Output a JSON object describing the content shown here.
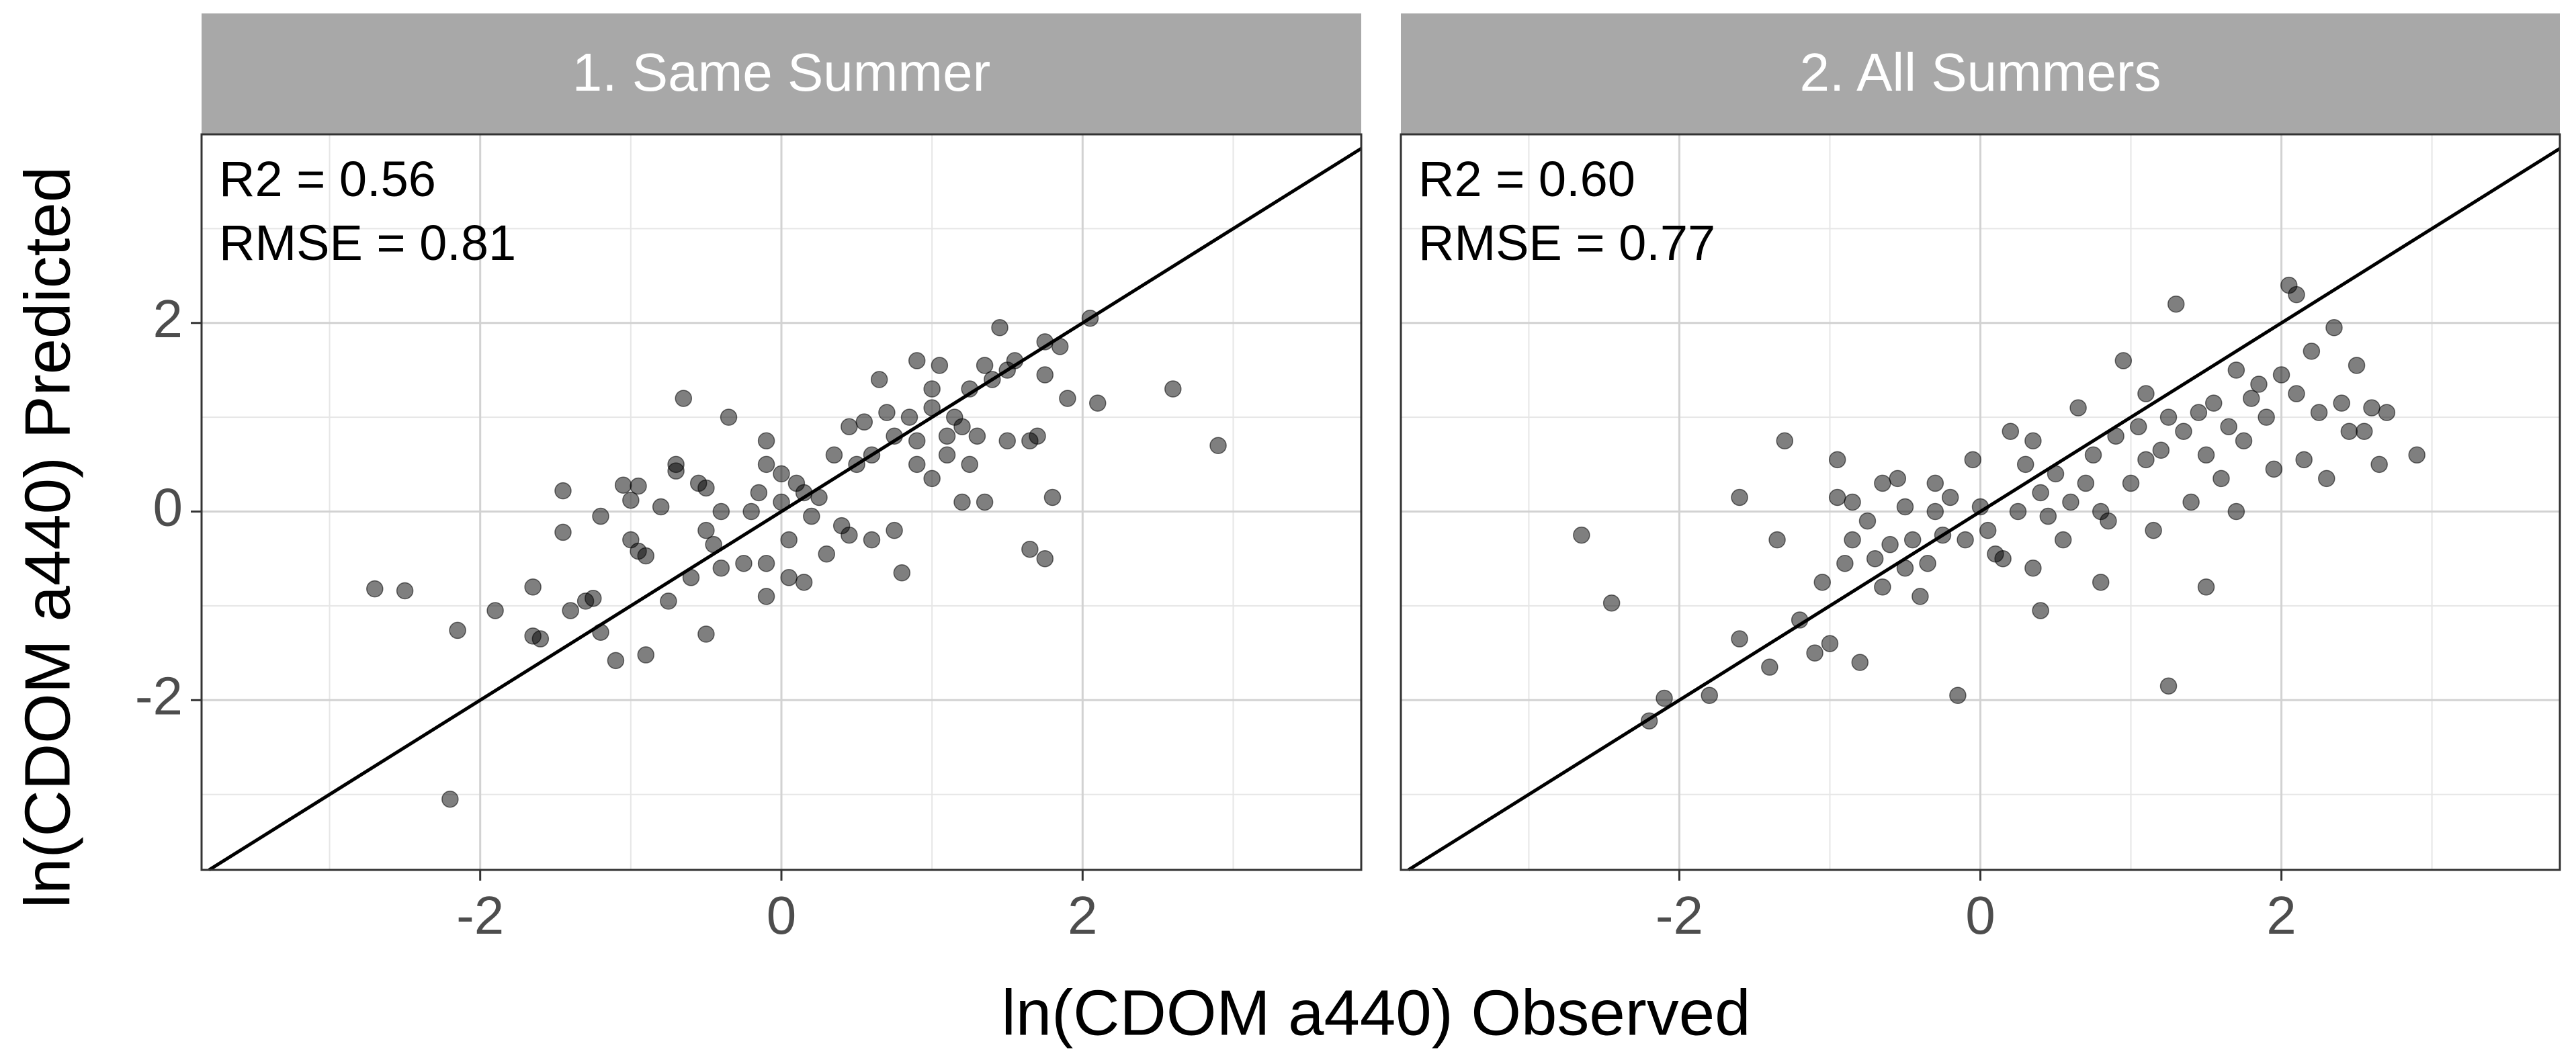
{
  "chart_data": {
    "type": "scatter",
    "ylabel": "ln(CDOM a440) Predicted",
    "xlabel": "ln(CDOM a440) Observed",
    "xlim": [
      -3.85,
      3.85
    ],
    "ylim": [
      -3.8,
      4.0
    ],
    "x_ticks": [
      -2,
      0,
      2
    ],
    "y_ticks": [
      -2,
      0,
      2
    ],
    "grid": true,
    "reference_line": "1:1",
    "panels": [
      {
        "title": "1. Same Summer",
        "stats": [
          {
            "label": "R2 = 0.56"
          },
          {
            "label": "RMSE = 0.81"
          }
        ],
        "points": [
          [
            -2.7,
            -0.82
          ],
          [
            -2.5,
            -0.84
          ],
          [
            -2.2,
            -3.05
          ],
          [
            -2.15,
            -1.26
          ],
          [
            -1.9,
            -1.05
          ],
          [
            -1.65,
            -0.8
          ],
          [
            -1.65,
            -1.32
          ],
          [
            -1.6,
            -1.35
          ],
          [
            -1.45,
            0.22
          ],
          [
            -1.45,
            -0.22
          ],
          [
            -1.4,
            -1.05
          ],
          [
            -1.3,
            -0.95
          ],
          [
            -1.25,
            -0.92
          ],
          [
            -1.2,
            -0.05
          ],
          [
            -1.2,
            -1.28
          ],
          [
            -1.1,
            -1.58
          ],
          [
            -1.05,
            0.28
          ],
          [
            -1.0,
            -0.3
          ],
          [
            -1.0,
            0.12
          ],
          [
            -0.95,
            0.27
          ],
          [
            -0.95,
            -0.42
          ],
          [
            -0.9,
            -0.47
          ],
          [
            -0.9,
            -1.52
          ],
          [
            -0.8,
            0.05
          ],
          [
            -0.75,
            -0.95
          ],
          [
            -0.7,
            0.5
          ],
          [
            -0.7,
            0.43
          ],
          [
            -0.65,
            1.2
          ],
          [
            -0.6,
            -0.7
          ],
          [
            -0.55,
            0.3
          ],
          [
            -0.5,
            0.25
          ],
          [
            -0.5,
            -0.2
          ],
          [
            -0.5,
            -1.3
          ],
          [
            -0.45,
            -0.35
          ],
          [
            -0.4,
            0.0
          ],
          [
            -0.4,
            -0.6
          ],
          [
            -0.35,
            1.0
          ],
          [
            -0.25,
            -0.55
          ],
          [
            -0.2,
            0.0
          ],
          [
            -0.15,
            0.2
          ],
          [
            -0.1,
            0.75
          ],
          [
            -0.1,
            0.5
          ],
          [
            -0.1,
            -0.55
          ],
          [
            -0.1,
            -0.9
          ],
          [
            0.0,
            0.4
          ],
          [
            0.0,
            0.1
          ],
          [
            0.05,
            -0.7
          ],
          [
            0.05,
            -0.3
          ],
          [
            0.1,
            0.3
          ],
          [
            0.15,
            -0.75
          ],
          [
            0.15,
            0.2
          ],
          [
            0.2,
            -0.05
          ],
          [
            0.25,
            0.15
          ],
          [
            0.3,
            -0.45
          ],
          [
            0.35,
            0.6
          ],
          [
            0.4,
            -0.15
          ],
          [
            0.45,
            0.9
          ],
          [
            0.45,
            -0.25
          ],
          [
            0.5,
            0.5
          ],
          [
            0.55,
            0.95
          ],
          [
            0.6,
            0.6
          ],
          [
            0.6,
            -0.3
          ],
          [
            0.65,
            1.4
          ],
          [
            0.7,
            1.05
          ],
          [
            0.75,
            0.8
          ],
          [
            0.75,
            -0.2
          ],
          [
            0.8,
            -0.65
          ],
          [
            0.85,
            1.0
          ],
          [
            0.9,
            0.75
          ],
          [
            0.9,
            0.5
          ],
          [
            0.9,
            1.6
          ],
          [
            1.0,
            0.35
          ],
          [
            1.0,
            1.3
          ],
          [
            1.0,
            1.1
          ],
          [
            1.05,
            1.55
          ],
          [
            1.1,
            0.6
          ],
          [
            1.1,
            0.8
          ],
          [
            1.15,
            1.0
          ],
          [
            1.2,
            0.1
          ],
          [
            1.2,
            0.9
          ],
          [
            1.25,
            1.3
          ],
          [
            1.25,
            0.5
          ],
          [
            1.3,
            0.8
          ],
          [
            1.35,
            0.1
          ],
          [
            1.35,
            1.55
          ],
          [
            1.4,
            1.4
          ],
          [
            1.45,
            1.95
          ],
          [
            1.5,
            1.5
          ],
          [
            1.5,
            0.75
          ],
          [
            1.55,
            1.6
          ],
          [
            1.65,
            0.75
          ],
          [
            1.65,
            -0.4
          ],
          [
            1.7,
            0.8
          ],
          [
            1.75,
            1.8
          ],
          [
            1.75,
            1.45
          ],
          [
            1.75,
            -0.5
          ],
          [
            1.8,
            0.15
          ],
          [
            1.85,
            1.75
          ],
          [
            1.9,
            1.2
          ],
          [
            2.05,
            2.05
          ],
          [
            2.1,
            1.15
          ],
          [
            2.6,
            1.3
          ],
          [
            2.9,
            0.7
          ]
        ]
      },
      {
        "title": "2. All Summers",
        "stats": [
          {
            "label": "R2 = 0.60"
          },
          {
            "label": "RMSE = 0.77"
          }
        ],
        "points": [
          [
            -2.65,
            -0.25
          ],
          [
            -2.45,
            -0.97
          ],
          [
            -2.2,
            -2.22
          ],
          [
            -2.1,
            -1.98
          ],
          [
            -1.8,
            -1.95
          ],
          [
            -1.6,
            0.15
          ],
          [
            -1.6,
            -1.35
          ],
          [
            -1.4,
            -1.65
          ],
          [
            -1.35,
            -0.3
          ],
          [
            -1.3,
            0.75
          ],
          [
            -1.2,
            -1.15
          ],
          [
            -1.1,
            -1.5
          ],
          [
            -1.05,
            -0.75
          ],
          [
            -1.0,
            -1.4
          ],
          [
            -0.95,
            0.15
          ],
          [
            -0.95,
            0.55
          ],
          [
            -0.9,
            -0.55
          ],
          [
            -0.85,
            0.1
          ],
          [
            -0.85,
            -0.3
          ],
          [
            -0.8,
            -1.6
          ],
          [
            -0.75,
            -0.1
          ],
          [
            -0.7,
            -0.5
          ],
          [
            -0.65,
            0.3
          ],
          [
            -0.65,
            -0.8
          ],
          [
            -0.6,
            -0.35
          ],
          [
            -0.55,
            0.35
          ],
          [
            -0.5,
            -0.6
          ],
          [
            -0.45,
            -0.3
          ],
          [
            -0.4,
            -0.9
          ],
          [
            -0.35,
            -0.55
          ],
          [
            -0.3,
            0.0
          ],
          [
            -0.3,
            0.3
          ],
          [
            -0.25,
            -0.25
          ],
          [
            -0.2,
            0.15
          ],
          [
            -0.15,
            -1.95
          ],
          [
            -0.1,
            -0.3
          ],
          [
            -0.05,
            0.55
          ],
          [
            0.0,
            0.05
          ],
          [
            0.05,
            -0.2
          ],
          [
            0.1,
            -0.45
          ],
          [
            0.15,
            -0.5
          ],
          [
            0.2,
            0.85
          ],
          [
            0.25,
            0.0
          ],
          [
            0.3,
            0.5
          ],
          [
            0.35,
            0.75
          ],
          [
            0.35,
            -0.6
          ],
          [
            0.4,
            0.2
          ],
          [
            0.4,
            -1.05
          ],
          [
            0.45,
            -0.05
          ],
          [
            0.5,
            0.4
          ],
          [
            0.6,
            0.1
          ],
          [
            0.65,
            1.1
          ],
          [
            0.7,
            0.3
          ],
          [
            0.75,
            0.6
          ],
          [
            0.8,
            0.0
          ],
          [
            0.85,
            -0.1
          ],
          [
            0.9,
            0.8
          ],
          [
            0.95,
            1.6
          ],
          [
            1.0,
            0.3
          ],
          [
            1.05,
            0.9
          ],
          [
            1.1,
            1.25
          ],
          [
            1.1,
            0.55
          ],
          [
            1.15,
            -0.2
          ],
          [
            1.2,
            0.65
          ],
          [
            1.25,
            1.0
          ],
          [
            1.3,
            2.2
          ],
          [
            1.35,
            0.85
          ],
          [
            1.4,
            0.1
          ],
          [
            1.45,
            1.05
          ],
          [
            1.5,
            0.6
          ],
          [
            1.55,
            1.15
          ],
          [
            1.6,
            0.35
          ],
          [
            1.65,
            0.9
          ],
          [
            1.7,
            1.5
          ],
          [
            1.75,
            0.75
          ],
          [
            1.8,
            1.2
          ],
          [
            1.85,
            1.35
          ],
          [
            1.9,
            1.0
          ],
          [
            1.95,
            0.45
          ],
          [
            2.0,
            1.45
          ],
          [
            2.05,
            2.4
          ],
          [
            2.1,
            1.25
          ],
          [
            2.15,
            0.55
          ],
          [
            2.2,
            1.7
          ],
          [
            2.25,
            1.05
          ],
          [
            2.3,
            0.35
          ],
          [
            2.35,
            1.95
          ],
          [
            2.4,
            1.15
          ],
          [
            2.45,
            0.85
          ],
          [
            2.5,
            1.55
          ],
          [
            2.6,
            1.1
          ],
          [
            2.65,
            0.5
          ],
          [
            2.7,
            1.05
          ],
          [
            2.1,
            2.3
          ],
          [
            2.55,
            0.85
          ],
          [
            2.9,
            0.6
          ],
          [
            1.5,
            -0.8
          ],
          [
            0.8,
            -0.75
          ],
          [
            1.25,
            -1.85
          ],
          [
            0.55,
            -0.3
          ],
          [
            1.7,
            0.0
          ],
          [
            -0.5,
            0.05
          ]
        ]
      }
    ]
  }
}
